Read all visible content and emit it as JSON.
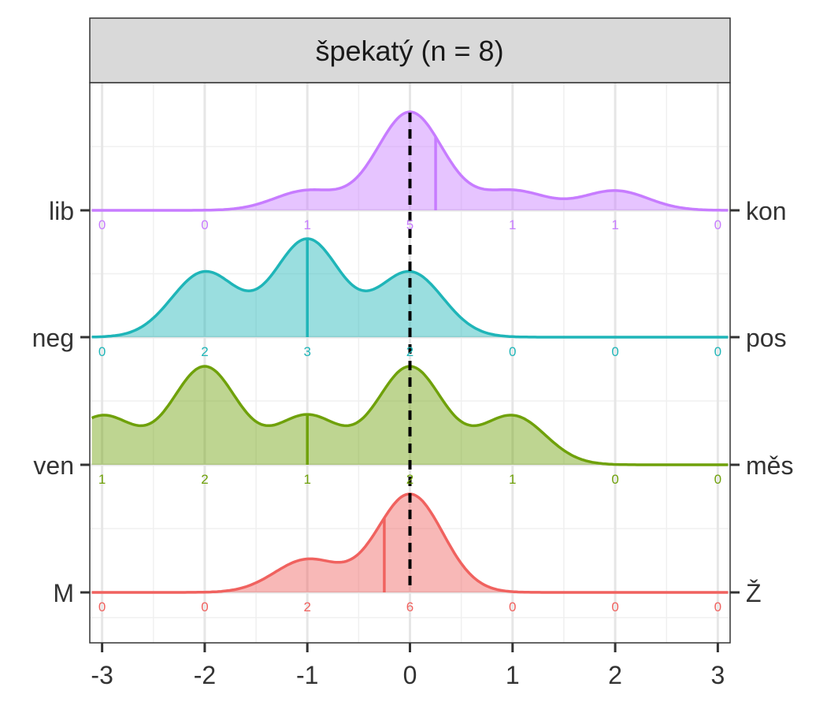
{
  "chart_data": {
    "type": "ridgeline",
    "title": "špekatý (n = 8)",
    "xlim": [
      -3.12,
      3.12
    ],
    "x_ticks": [
      -3,
      -2,
      -1,
      0,
      1,
      2,
      3
    ],
    "x_tick_labels": [
      "-3",
      "-2",
      "-1",
      "0",
      "1",
      "2",
      "3"
    ],
    "reference_line_x": 0,
    "count_positions": [
      -3,
      -2,
      -1,
      0,
      1,
      2,
      3
    ],
    "series": [
      {
        "left_label": "lib",
        "right_label": "kon",
        "color": "#c77cff",
        "counts": [
          0,
          0,
          1,
          5,
          1,
          1,
          0
        ],
        "mean": 0.25
      },
      {
        "left_label": "neg",
        "right_label": "pos",
        "color": "#1fb5b8",
        "counts": [
          0,
          2,
          3,
          2,
          0,
          0,
          0
        ],
        "mean": -1.0
      },
      {
        "left_label": "ven",
        "right_label": "měs",
        "color": "#6fa10a",
        "counts": [
          1,
          2,
          1,
          2,
          1,
          0,
          0
        ],
        "mean": -1.0
      },
      {
        "left_label": "M",
        "right_label": "Ž",
        "color": "#f0625f",
        "counts": [
          0,
          0,
          2,
          6,
          0,
          0,
          0
        ],
        "mean": -0.25
      }
    ],
    "grid": true
  }
}
